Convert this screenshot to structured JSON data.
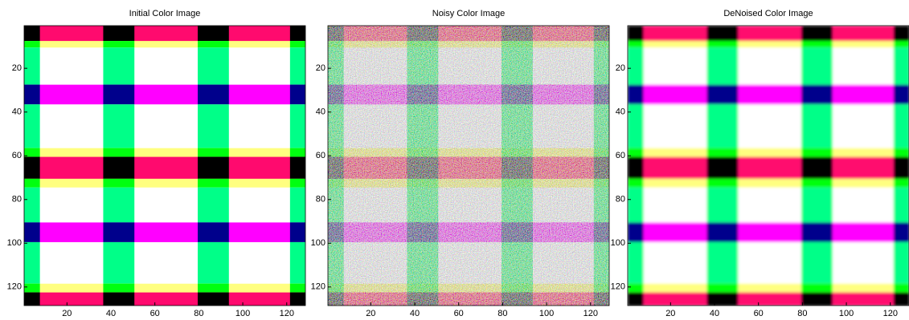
{
  "chart_data": [
    {
      "type": "image",
      "title": "Initial Color Image",
      "xlim": [
        0.5,
        128.5
      ],
      "ylim": [
        0.5,
        128.5
      ],
      "xticks": [
        20,
        40,
        60,
        80,
        100,
        120
      ],
      "yticks": [
        20,
        40,
        60,
        80,
        100,
        120
      ]
    },
    {
      "type": "image",
      "title": "Noisy Color Image",
      "xlim": [
        0.5,
        128.5
      ],
      "ylim": [
        0.5,
        128.5
      ],
      "xticks": [
        20,
        40,
        60,
        80,
        100,
        120
      ],
      "yticks": [
        20,
        40,
        60,
        80,
        100,
        120
      ]
    },
    {
      "type": "image",
      "title": "DeNoised Color Image",
      "xlim": [
        0.5,
        128.5
      ],
      "ylim": [
        0.5,
        128.5
      ],
      "xticks": [
        20,
        40,
        60,
        80,
        100,
        120
      ],
      "yticks": [
        20,
        40,
        60,
        80,
        100,
        120
      ]
    }
  ]
}
